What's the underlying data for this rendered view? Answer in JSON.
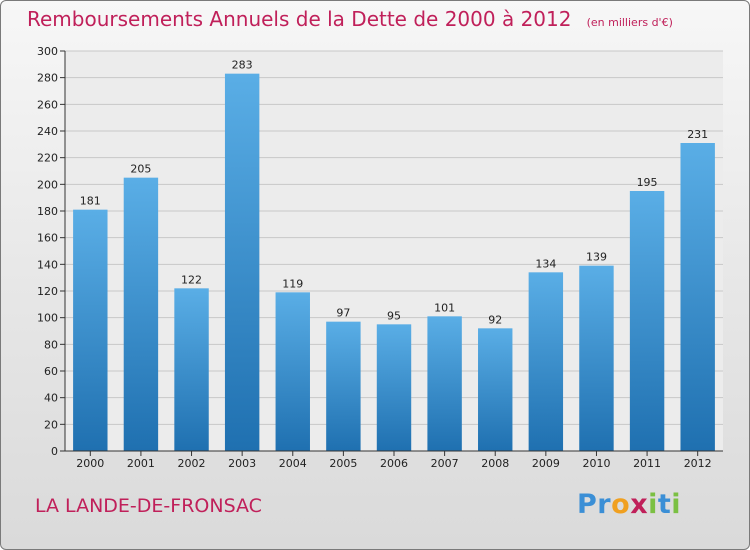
{
  "chart_data": {
    "type": "bar",
    "title": "Remboursements Annuels de la Dette de 2000 à 2012",
    "unit_label": "(en milliers d'€)",
    "categories": [
      "2000",
      "2001",
      "2002",
      "2003",
      "2004",
      "2005",
      "2006",
      "2007",
      "2008",
      "2009",
      "2010",
      "2011",
      "2012"
    ],
    "values": [
      181,
      205,
      122,
      283,
      119,
      97,
      95,
      101,
      92,
      134,
      139,
      195,
      231
    ],
    "ylim": [
      0,
      300
    ],
    "yticks": [
      0,
      20,
      40,
      60,
      80,
      100,
      120,
      140,
      160,
      180,
      200,
      220,
      240,
      260,
      280,
      300
    ],
    "grid": true,
    "colors": {
      "bar_top": "#5aaee6",
      "bar_bottom": "#1f70b0",
      "accent": "#c0205a"
    }
  },
  "commune": "LA LANDE-DE-FRONSAC",
  "logo": {
    "letters": [
      "P",
      "r",
      "o",
      "x",
      "i",
      "t",
      "i"
    ],
    "colors": [
      "#3b8fd6",
      "#3b8fd6",
      "#f0a020",
      "#c0205a",
      "#7bc043",
      "#3b8fd6",
      "#7bc043"
    ]
  }
}
